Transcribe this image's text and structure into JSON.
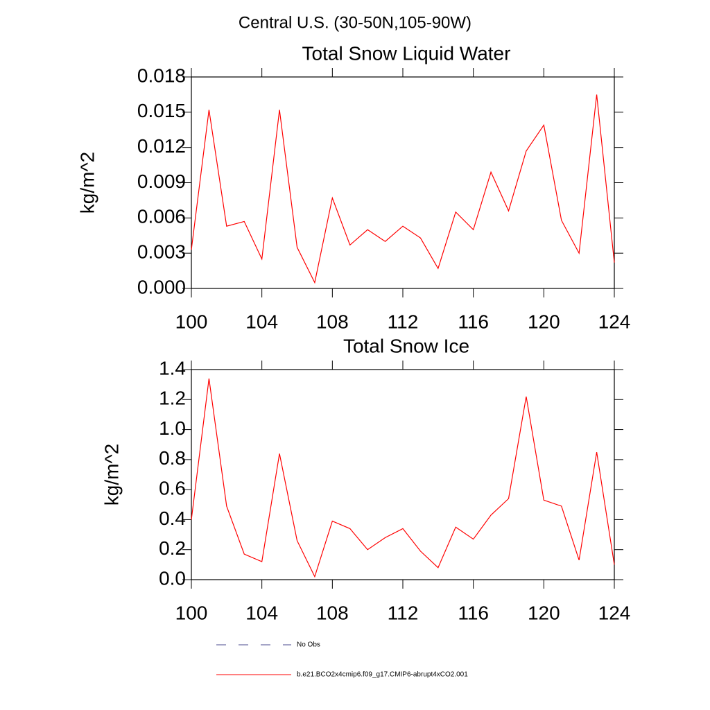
{
  "title": "Central U.S. (30-50N,105-90W)",
  "legend_extra": {
    "name": "No Obs",
    "color": "#4b4b8f",
    "dash": true
  },
  "chart_data": [
    {
      "type": "line",
      "title": "Total Snow Liquid Water",
      "ylabel": "kg/m^2",
      "x": [
        100,
        101,
        102,
        103,
        104,
        105,
        106,
        107,
        108,
        109,
        110,
        111,
        112,
        113,
        114,
        115,
        116,
        117,
        118,
        119,
        120,
        121,
        122,
        123,
        124
      ],
      "series": [
        {
          "name": "b.e21.BCO2x4cmip6.f09_g17.CMIP6-abrupt4xCO2.001",
          "color": "#ff0000",
          "values": [
            0.0033,
            0.0152,
            0.0053,
            0.0057,
            0.0025,
            0.0152,
            0.0035,
            0.0005,
            0.0077,
            0.0037,
            0.005,
            0.004,
            0.0053,
            0.0043,
            0.0017,
            0.0065,
            0.005,
            0.0099,
            0.0066,
            0.0117,
            0.0139,
            0.0058,
            0.003,
            0.0165,
            0.0022
          ]
        }
      ],
      "xlim": [
        100,
        124
      ],
      "xticks": [
        100,
        104,
        108,
        112,
        116,
        120,
        124
      ],
      "ylim": [
        0,
        0.018
      ],
      "yticks": [
        {
          "value": 0,
          "label": "0.000"
        },
        {
          "value": 0.003,
          "label": "0.003"
        },
        {
          "value": 0.006,
          "label": "0.006"
        },
        {
          "value": 0.009,
          "label": "0.009"
        },
        {
          "value": 0.012,
          "label": "0.012"
        },
        {
          "value": 0.015,
          "label": "0.015"
        },
        {
          "value": 0.018,
          "label": "0.018"
        }
      ]
    },
    {
      "type": "line",
      "title": "Total Snow Ice",
      "ylabel": "kg/m^2",
      "x": [
        100,
        101,
        102,
        103,
        104,
        105,
        106,
        107,
        108,
        109,
        110,
        111,
        112,
        113,
        114,
        115,
        116,
        117,
        118,
        119,
        120,
        121,
        122,
        123,
        124
      ],
      "series": [
        {
          "name": "b.e21.BCO2x4cmip6.f09_g17.CMIP6-abrupt4xCO2.001",
          "color": "#ff0000",
          "values": [
            0.4,
            1.34,
            0.49,
            0.17,
            0.12,
            0.84,
            0.26,
            0.02,
            0.39,
            0.34,
            0.2,
            0.28,
            0.34,
            0.19,
            0.08,
            0.35,
            0.27,
            0.43,
            0.54,
            1.22,
            0.53,
            0.49,
            0.13,
            0.85,
            0.1
          ]
        }
      ],
      "xlim": [
        100,
        124
      ],
      "xticks": [
        100,
        104,
        108,
        112,
        116,
        120,
        124
      ],
      "ylim": [
        0,
        1.4
      ],
      "yticks": [
        {
          "value": 0,
          "label": "0.0"
        },
        0.2,
        0.4,
        0.6,
        0.8,
        {
          "value": 1,
          "label": "1.0"
        },
        1.2,
        1.4
      ]
    }
  ]
}
